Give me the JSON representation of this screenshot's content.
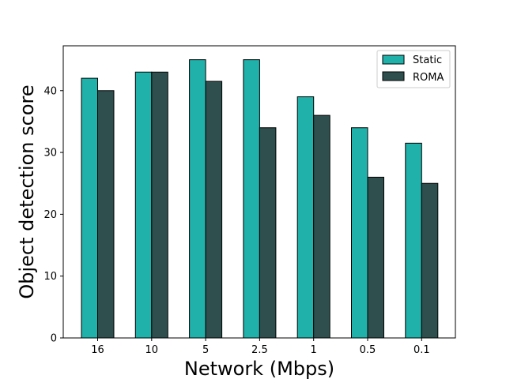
{
  "chart_data": {
    "type": "bar",
    "categories": [
      "16",
      "10",
      "5",
      "2.5",
      "1",
      "0.5",
      "0.1"
    ],
    "series": [
      {
        "name": "Static",
        "color": "#20b2aa",
        "values": [
          42,
          43,
          45,
          45,
          39,
          34,
          31.5
        ]
      },
      {
        "name": "ROMA",
        "color": "#2f4f4f",
        "values": [
          40,
          43,
          41.5,
          34,
          36,
          26,
          25
        ]
      }
    ],
    "xlabel": "Network (Mbps)",
    "ylabel": "Object detection score",
    "ylim": [
      0,
      47.25
    ],
    "yticks": [
      0,
      10,
      20,
      30,
      40
    ],
    "grid": false,
    "legend_position": "top-right"
  }
}
